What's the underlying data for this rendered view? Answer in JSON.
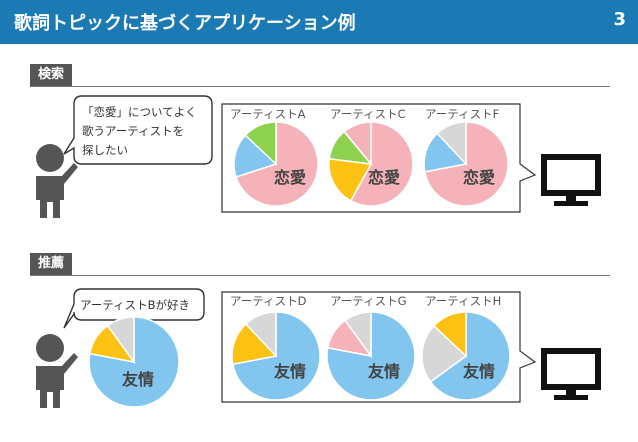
{
  "header": {
    "title": "歌詞トピックに基づくアプリケーション例",
    "page_number": "3"
  },
  "colors": {
    "header": "#1b7ab3",
    "pink": "#f6b2b9",
    "blue": "#82c6ef",
    "green": "#8dd14e",
    "yellow": "#fbc213",
    "gray": "#d7d7d7"
  },
  "sections": {
    "search": {
      "label": "検索",
      "bubble": [
        "「恋愛」についてよく",
        "歌うアーティストを",
        "探したい"
      ],
      "results": [
        {
          "artist": "アーティストA",
          "topic": "恋愛",
          "slices": [
            {
              "color": "pink",
              "value": 0.7
            },
            {
              "color": "blue",
              "value": 0.17
            },
            {
              "color": "green",
              "value": 0.13
            }
          ]
        },
        {
          "artist": "アーティストC",
          "topic": "恋愛",
          "slices": [
            {
              "color": "pink",
              "value": 0.58
            },
            {
              "color": "yellow",
              "value": 0.19
            },
            {
              "color": "green",
              "value": 0.12
            },
            {
              "color": "pink",
              "value": 0.11
            }
          ]
        },
        {
          "artist": "アーティストF",
          "topic": "恋愛",
          "slices": [
            {
              "color": "pink",
              "value": 0.72
            },
            {
              "color": "blue",
              "value": 0.16
            },
            {
              "color": "gray",
              "value": 0.12
            }
          ]
        }
      ]
    },
    "recommend": {
      "label": "推薦",
      "bubble": [
        "アーティストBが好き"
      ],
      "user_pie": {
        "topic": "友情",
        "slices": [
          {
            "color": "blue",
            "value": 0.78
          },
          {
            "color": "yellow",
            "value": 0.12
          },
          {
            "color": "gray",
            "value": 0.1
          }
        ]
      },
      "results": [
        {
          "artist": "アーティストD",
          "topic": "友情",
          "slices": [
            {
              "color": "blue",
              "value": 0.72
            },
            {
              "color": "yellow",
              "value": 0.16
            },
            {
              "color": "gray",
              "value": 0.12
            }
          ]
        },
        {
          "artist": "アーティストG",
          "topic": "友情",
          "slices": [
            {
              "color": "blue",
              "value": 0.78
            },
            {
              "color": "pink",
              "value": 0.12
            },
            {
              "color": "gray",
              "value": 0.1
            }
          ]
        },
        {
          "artist": "アーティストH",
          "topic": "友情",
          "slices": [
            {
              "color": "blue",
              "value": 0.65
            },
            {
              "color": "gray",
              "value": 0.22
            },
            {
              "color": "yellow",
              "value": 0.13
            }
          ]
        }
      ]
    }
  }
}
